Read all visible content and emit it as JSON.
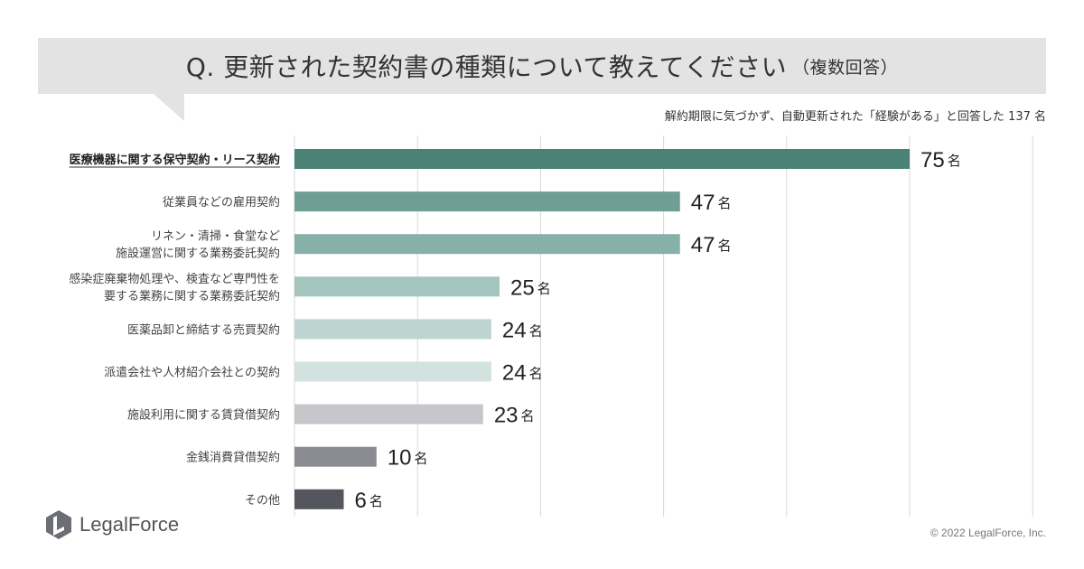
{
  "title": {
    "main": "Q. 更新された契約書の種類について教えてください",
    "note": "（複数回答）"
  },
  "subtitle": "解約期限に気づかず、自動更新された「経験がある」と回答した 137 名",
  "unit": "名",
  "brand": {
    "name": "LegalForce"
  },
  "copyright": "© 2022 LegalForce, Inc.",
  "chart_data": {
    "type": "bar",
    "orientation": "horizontal",
    "title": "Q. 更新された契約書の種類について教えてください（複数回答）",
    "xlim": [
      0,
      120
    ],
    "grid": true,
    "categories": [
      "医療機器に関する保守契約・リース契約",
      "従業員などの雇用契約",
      "リネン・清掃・食堂など\n施設運営に関する業務委託契約",
      "感染症廃棄物処理や、検査など専門性を\n要する業務に関する業務委託契約",
      "医薬品卸と締結する売買契約",
      "派遣会社や人材紹介会社との契約",
      "施設利用に関する賃貸借契約",
      "金銭消費貸借契約",
      "その他"
    ],
    "values": [
      75,
      47,
      47,
      25,
      24,
      24,
      23,
      10,
      6
    ],
    "colors": [
      "#4a8275",
      "#6f9f94",
      "#87b1a8",
      "#a3c5bd",
      "#bdd5d0",
      "#d2e3df",
      "#c6c7cb",
      "#8a8c92",
      "#55565d"
    ],
    "highlight_index": 0
  }
}
